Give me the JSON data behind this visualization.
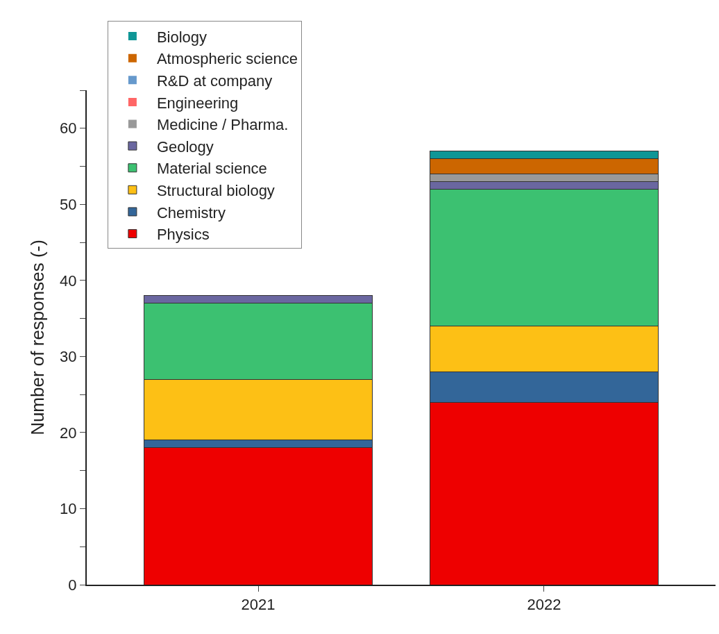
{
  "chart_data": {
    "type": "bar",
    "stacked": true,
    "ylabel": "Number of responses (-)",
    "categories": [
      "2021",
      "2022"
    ],
    "series": [
      {
        "name": "Physics",
        "color": "#ee0000",
        "values": [
          18,
          24
        ]
      },
      {
        "name": "Chemistry",
        "color": "#336699",
        "values": [
          1,
          4
        ]
      },
      {
        "name": "Structural biology",
        "color": "#fdc015",
        "values": [
          8,
          6
        ]
      },
      {
        "name": "Material science",
        "color": "#3cc171",
        "values": [
          10,
          18
        ]
      },
      {
        "name": "Geology",
        "color": "#6a67a0",
        "values": [
          1,
          1
        ]
      },
      {
        "name": "Medicine / Pharma.",
        "color": "#999999",
        "values": [
          0,
          1
        ]
      },
      {
        "name": "Engineering",
        "color": "#ff6666",
        "values": [
          0,
          0
        ]
      },
      {
        "name": "R&D at company",
        "color": "#6699cc",
        "values": [
          0,
          0
        ]
      },
      {
        "name": "Atmospheric science",
        "color": "#cc6600",
        "values": [
          0,
          2
        ]
      },
      {
        "name": "Biology",
        "color": "#0f9696",
        "values": [
          0,
          1
        ]
      }
    ],
    "ylim": [
      0,
      65
    ],
    "yticks": [
      0,
      {
        "value": 5,
        "label": null
      },
      10,
      {
        "value": 15,
        "label": null
      },
      20,
      {
        "value": 25,
        "label": null
      },
      30,
      {
        "value": 35,
        "label": null
      },
      40,
      {
        "value": 45,
        "label": null
      },
      50,
      {
        "value": 55,
        "label": null
      },
      60,
      {
        "value": 65,
        "label": null
      }
    ],
    "legend": "top left"
  }
}
